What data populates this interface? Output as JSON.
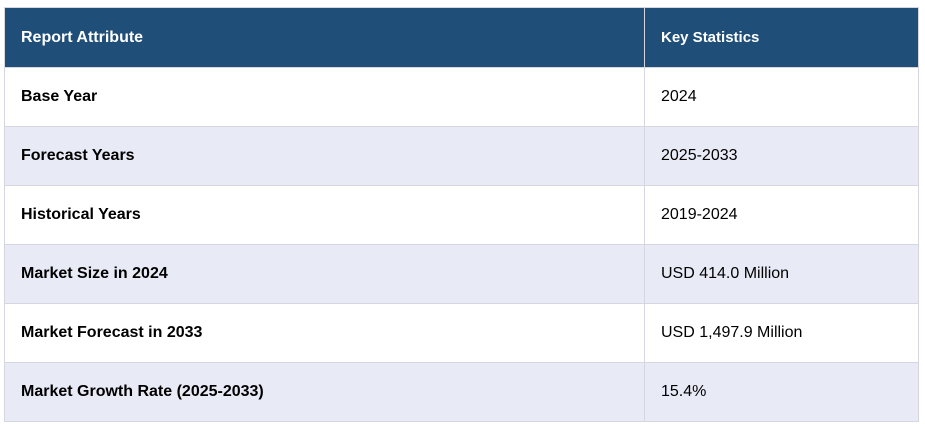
{
  "table": {
    "headers": [
      "Report Attribute",
      "Key Statistics"
    ],
    "rows": [
      [
        "Base Year",
        "2024"
      ],
      [
        "Forecast Years",
        "2025-2033"
      ],
      [
        "Historical Years",
        "2019-2024"
      ],
      [
        "Market Size in 2024",
        "USD 414.0 Million"
      ],
      [
        "Market Forecast in 2033",
        "USD 1,497.9 Million"
      ],
      [
        "Market Growth Rate (2025-2033)",
        "15.4%"
      ]
    ],
    "colors": {
      "header_bg": "#1f4e79",
      "header_text": "#ffffff",
      "row_alt_bg": "#e8eaf6",
      "row_bg": "#ffffff"
    }
  }
}
